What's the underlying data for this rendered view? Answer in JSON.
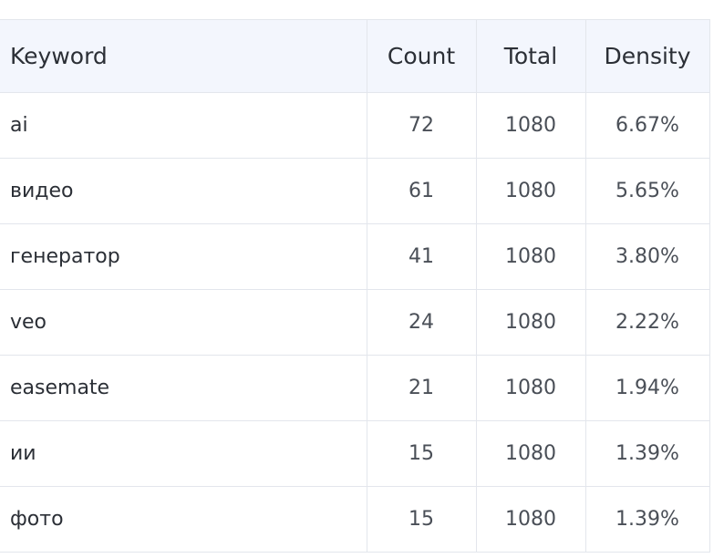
{
  "table": {
    "headers": {
      "keyword": "Keyword",
      "count": "Count",
      "total": "Total",
      "density": "Density"
    },
    "rows": [
      {
        "keyword": "ai",
        "count": "72",
        "total": "1080",
        "density": "6.67%"
      },
      {
        "keyword": "видео",
        "count": "61",
        "total": "1080",
        "density": "5.65%"
      },
      {
        "keyword": "генератор",
        "count": "41",
        "total": "1080",
        "density": "3.80%"
      },
      {
        "keyword": "veo",
        "count": "24",
        "total": "1080",
        "density": "2.22%"
      },
      {
        "keyword": "easemate",
        "count": "21",
        "total": "1080",
        "density": "1.94%"
      },
      {
        "keyword": "ии",
        "count": "15",
        "total": "1080",
        "density": "1.39%"
      },
      {
        "keyword": "фото",
        "count": "15",
        "total": "1080",
        "density": "1.39%"
      }
    ]
  },
  "colors": {
    "header_background": "#f3f6fd",
    "border": "#e3e6ec",
    "text_primary": "#2b2f36",
    "text_secondary": "#4a4f57"
  }
}
